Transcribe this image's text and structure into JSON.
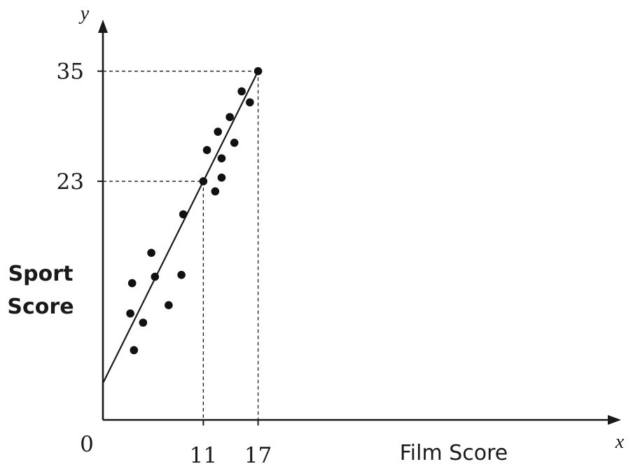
{
  "chart_data": {
    "type": "scatter",
    "title": "",
    "xlabel": "Film Score",
    "ylabel_lines": [
      "Sport",
      "Score"
    ],
    "x_axis_var": "x",
    "y_axis_var": "y",
    "origin_label": "0",
    "xlim": [
      0,
      57
    ],
    "ylim": [
      -3,
      41
    ],
    "x_ticks": [
      11,
      17
    ],
    "y_ticks": [
      23,
      35
    ],
    "points": [
      {
        "x": 3.2,
        "y": 11.9
      },
      {
        "x": 3.0,
        "y": 8.6
      },
      {
        "x": 3.4,
        "y": 4.6
      },
      {
        "x": 4.4,
        "y": 7.6
      },
      {
        "x": 5.3,
        "y": 15.2
      },
      {
        "x": 5.7,
        "y": 12.6
      },
      {
        "x": 7.2,
        "y": 9.5
      },
      {
        "x": 8.6,
        "y": 12.8
      },
      {
        "x": 8.8,
        "y": 19.4
      },
      {
        "x": 11.0,
        "y": 23.0
      },
      {
        "x": 11.4,
        "y": 26.4
      },
      {
        "x": 12.3,
        "y": 21.9
      },
      {
        "x": 12.6,
        "y": 28.4
      },
      {
        "x": 13.0,
        "y": 23.4
      },
      {
        "x": 13.0,
        "y": 25.5
      },
      {
        "x": 13.9,
        "y": 30.0
      },
      {
        "x": 14.4,
        "y": 27.2
      },
      {
        "x": 15.2,
        "y": 32.8
      },
      {
        "x": 16.1,
        "y": 31.6
      },
      {
        "x": 17.0,
        "y": 35.0
      }
    ],
    "fit_line": {
      "from": {
        "x": 0,
        "y": 1.0
      },
      "to": {
        "x": 17,
        "y": 35
      }
    },
    "guides": [
      {
        "x": 11,
        "y": 23
      },
      {
        "x": 17,
        "y": 35
      }
    ],
    "grid": false,
    "colors": {
      "ink": "#1a1a1a",
      "points": "#111111",
      "background": "#ffffff"
    }
  }
}
